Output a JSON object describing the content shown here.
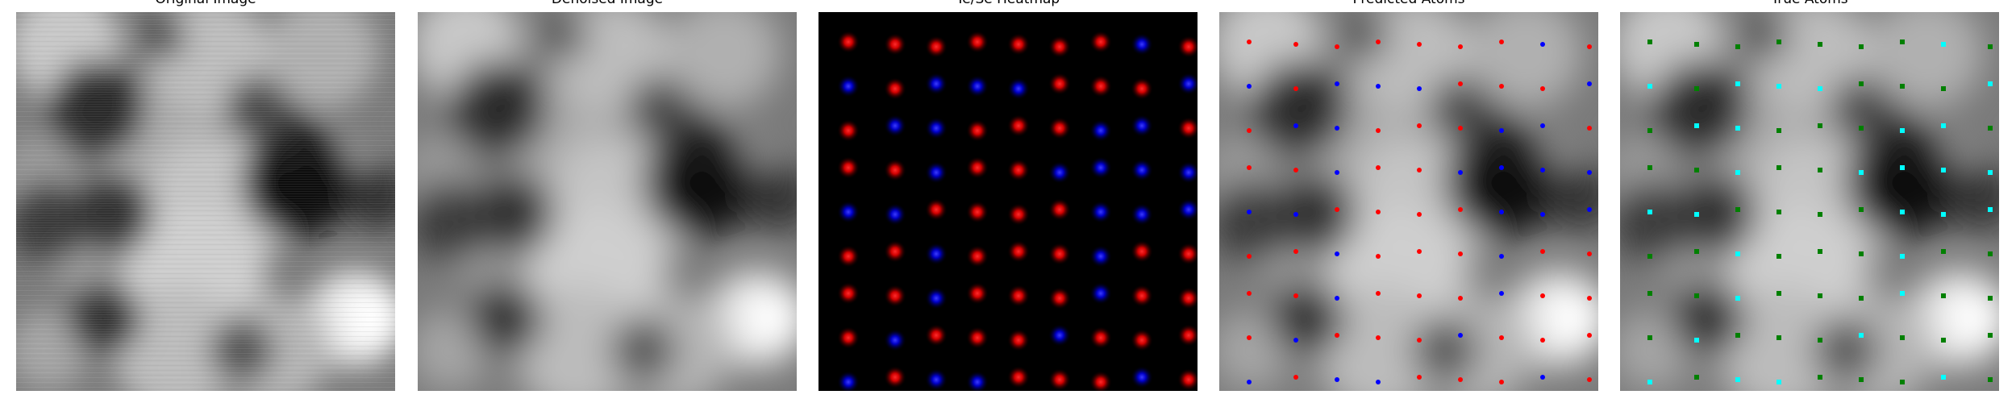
{
  "figure": {
    "panels": [
      {
        "id": "original",
        "title": "Original Image",
        "content": "noisy grayscale microscopy image"
      },
      {
        "id": "denoised",
        "title": "Denoised Image",
        "content": "smoothed grayscale microscopy image"
      },
      {
        "id": "heatmap",
        "title": "Te/Se Heatmap",
        "content": "lattice of red and blue gaussian spots on black"
      },
      {
        "id": "predicted",
        "title": "Predicted Atoms",
        "content": "denoised image with red and blue atom markers"
      },
      {
        "id": "true",
        "title": "True Atoms",
        "content": "denoised image with green and cyan atom markers"
      }
    ]
  },
  "colors": {
    "te": "#ff0000",
    "se": "#0000ff",
    "true_te": "#008000",
    "true_se": "#00ffff",
    "background": "#000000"
  },
  "lattice": {
    "cols": 9,
    "rows": 9,
    "pattern": [
      [
        "R",
        "R",
        "R",
        "R",
        "R",
        "R",
        "R",
        "B",
        "R"
      ],
      [
        "B",
        "R",
        "B",
        "B",
        "B",
        "R",
        "R",
        "R",
        "B"
      ],
      [
        "R",
        "B",
        "B",
        "R",
        "R",
        "R",
        "B",
        "B",
        "R"
      ],
      [
        "R",
        "R",
        "B",
        "R",
        "R",
        "B",
        "B",
        "B",
        "B"
      ],
      [
        "B",
        "B",
        "R",
        "R",
        "R",
        "R",
        "B",
        "B",
        "B"
      ],
      [
        "R",
        "R",
        "B",
        "R",
        "R",
        "R",
        "B",
        "R",
        "R"
      ],
      [
        "R",
        "R",
        "B",
        "R",
        "R",
        "R",
        "B",
        "R",
        "R"
      ],
      [
        "R",
        "B",
        "R",
        "R",
        "R",
        "B",
        "R",
        "R",
        "R"
      ],
      [
        "B",
        "R",
        "B",
        "B",
        "R",
        "R",
        "R",
        "B",
        "R"
      ]
    ]
  }
}
